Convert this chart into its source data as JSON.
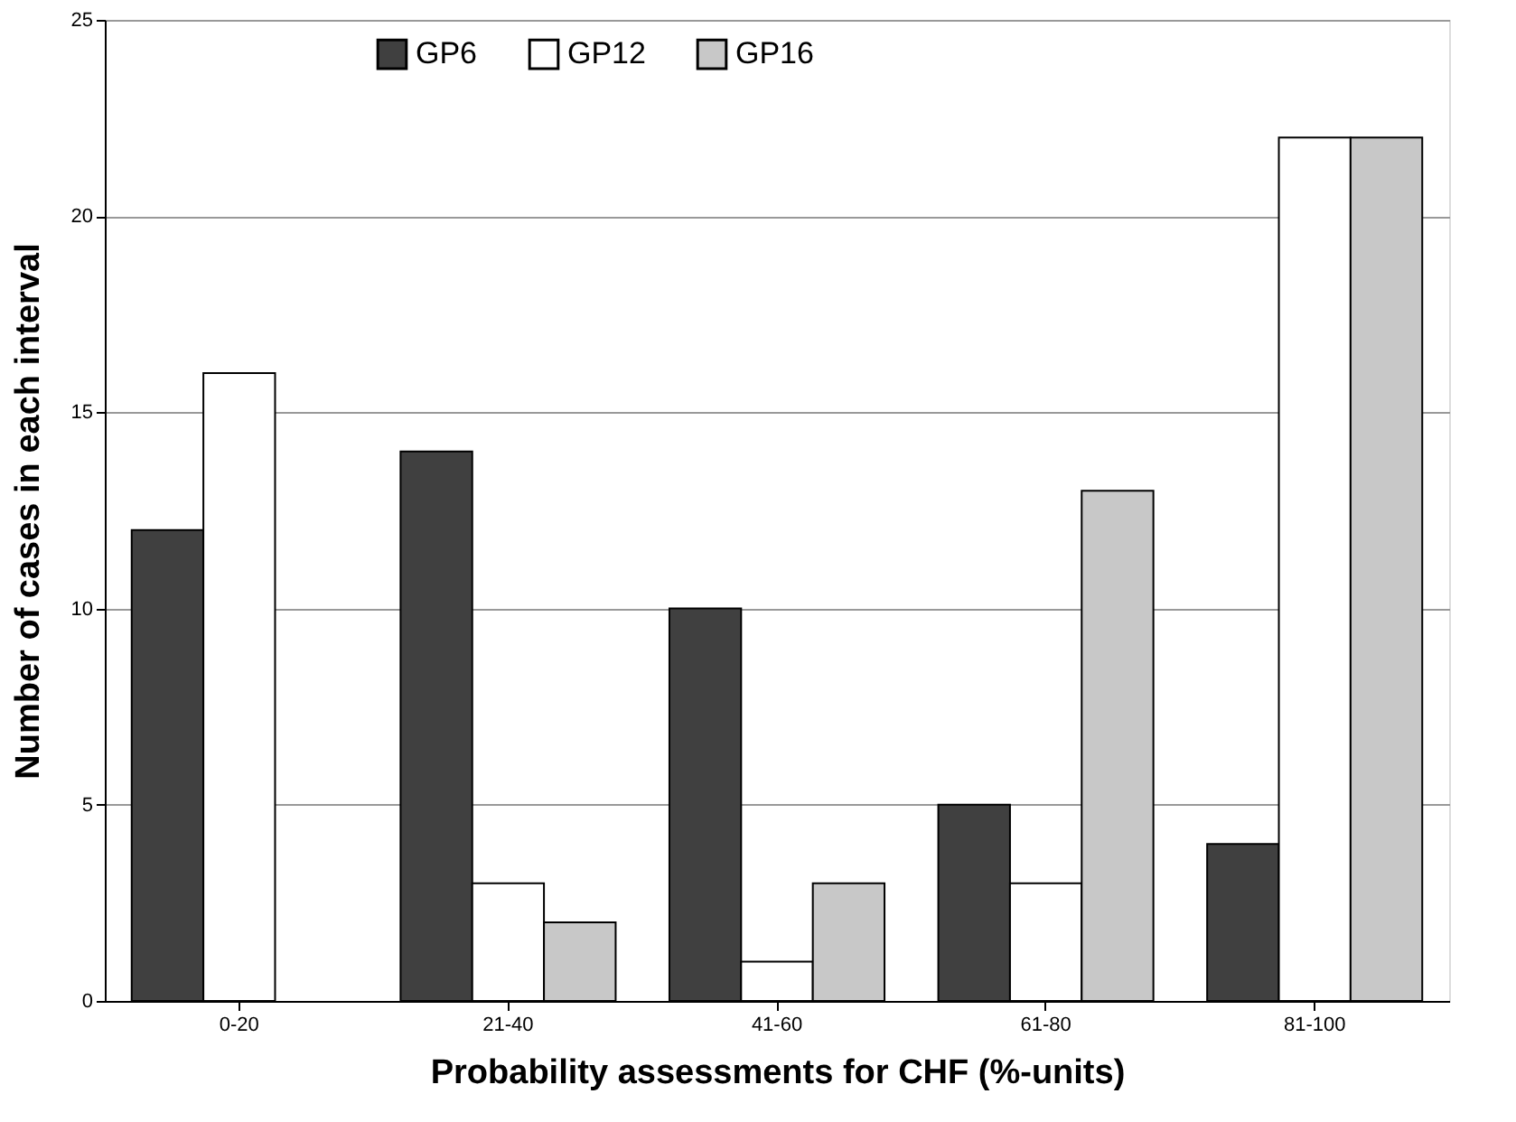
{
  "chart_data": {
    "type": "bar",
    "xlabel": "Probability assessments for CHF (%-units)",
    "ylabel": "Number of cases in each interval",
    "categories": [
      "0-20",
      "21-40",
      "41-60",
      "61-80",
      "81-100"
    ],
    "series": [
      {
        "name": "GP6",
        "color": "#404040",
        "values": [
          12,
          14,
          10,
          5,
          4
        ]
      },
      {
        "name": "GP12",
        "color": "#ffffff",
        "values": [
          16,
          3,
          1,
          3,
          22
        ]
      },
      {
        "name": "GP16",
        "color": "#c8c8c8",
        "values": [
          null,
          2,
          3,
          13,
          22
        ]
      }
    ],
    "ylim": [
      0,
      25
    ],
    "yticks": [
      0,
      5,
      10,
      15,
      20,
      25
    ],
    "grid": "y",
    "legend": "top"
  }
}
